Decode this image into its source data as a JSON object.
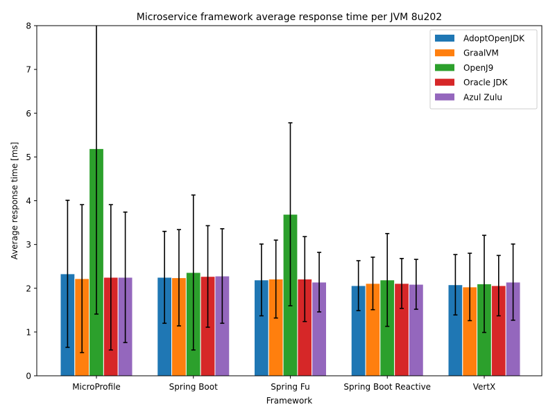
{
  "chart_data": {
    "type": "bar",
    "title": "Microservice framework average response time per JVM 8u202",
    "xlabel": "Framework",
    "ylabel": "Average response time [ms]",
    "ylim": [
      0,
      8
    ],
    "yticks": [
      0,
      1,
      2,
      3,
      4,
      5,
      6,
      7,
      8
    ],
    "categories": [
      "MicroProfile",
      "Spring Boot",
      "Spring Fu",
      "Spring Boot Reactive",
      "VertX"
    ],
    "legend_position": "top-right",
    "grid": false,
    "series": [
      {
        "name": "AdoptOpenJDK",
        "color": "#1f77b4",
        "values": [
          2.33,
          2.25,
          2.19,
          2.06,
          2.08
        ],
        "errors": [
          1.68,
          1.05,
          0.82,
          0.57,
          0.69
        ]
      },
      {
        "name": "GraalVM",
        "color": "#ff7f0e",
        "values": [
          2.22,
          2.24,
          2.21,
          2.11,
          2.03
        ],
        "errors": [
          1.69,
          1.1,
          0.89,
          0.6,
          0.77
        ]
      },
      {
        "name": "OpenJ9",
        "color": "#2ca02c",
        "values": [
          5.19,
          2.36,
          3.69,
          2.19,
          2.1
        ],
        "errors": [
          3.78,
          1.77,
          2.09,
          1.06,
          1.11
        ]
      },
      {
        "name": "Oracle JDK",
        "color": "#d62728",
        "values": [
          2.25,
          2.27,
          2.21,
          2.11,
          2.06
        ],
        "errors": [
          1.66,
          1.16,
          0.97,
          0.57,
          0.69
        ]
      },
      {
        "name": "Azul Zulu",
        "color": "#9467bd",
        "values": [
          2.25,
          2.28,
          2.14,
          2.09,
          2.14
        ],
        "errors": [
          1.49,
          1.08,
          0.68,
          0.57,
          0.87
        ]
      }
    ]
  }
}
